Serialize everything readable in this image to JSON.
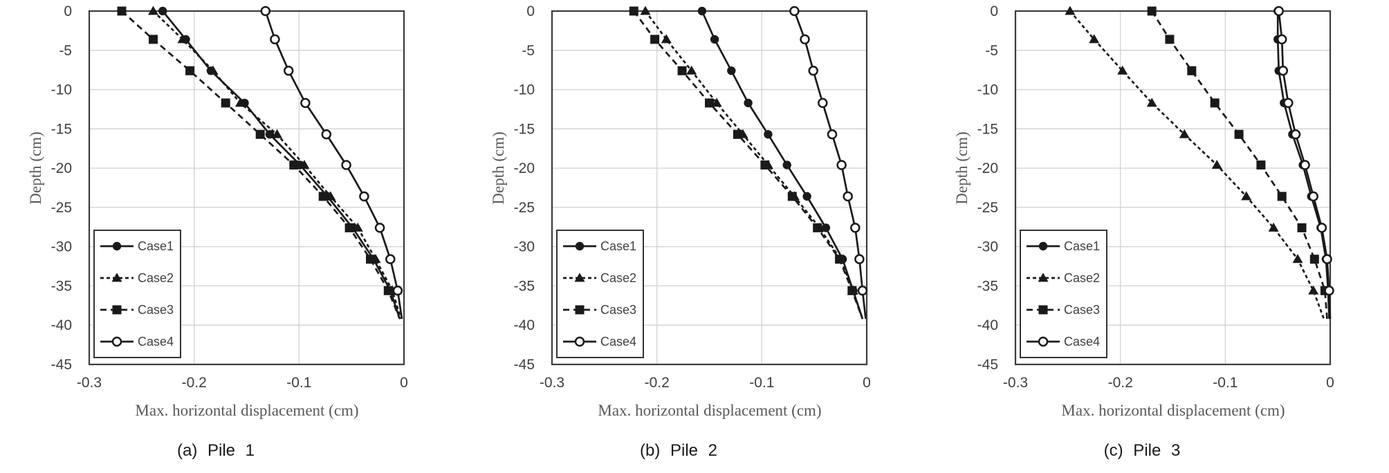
{
  "figure": {
    "background": "#ffffff"
  },
  "colors": {
    "series": "#1a1a1a",
    "grid": "#d2d2d2",
    "border": "#3c3c3c",
    "tick_text": "#3f3f3f",
    "axis_title_text": "#595959",
    "caption_text": "#1a1a1a",
    "legend_bg": "#ffffff"
  },
  "legend": {
    "position": "bottom-left",
    "entries": [
      "Case1",
      "Case2",
      "Case3",
      "Case4"
    ]
  },
  "chart_data": [
    {
      "type": "line",
      "caption": "(a) Pile 1",
      "xlabel": "Max. horizontal displacement (cm)",
      "ylabel": "Depth (cm)",
      "xlim": [
        -0.3,
        0
      ],
      "ylim": [
        -45,
        0
      ],
      "grid": true,
      "legend_position": "bottom-left",
      "x_tick_labels": [
        "-0.3",
        "-0.2",
        "-0.1",
        "0"
      ],
      "x_tick_values": [
        -0.3,
        -0.2,
        -0.1,
        0
      ],
      "y_tick_labels": [
        "0",
        "-5",
        "-10",
        "-15",
        "-20",
        "-25",
        "-30",
        "-35",
        "-40",
        "-45"
      ],
      "y_tick_values": [
        0,
        -5,
        -10,
        -15,
        -20,
        -25,
        -30,
        -35,
        -40,
        -45
      ],
      "depths": [
        0,
        -3.6,
        -7.6,
        -11.7,
        -15.7,
        -19.6,
        -23.6,
        -27.6,
        -31.6,
        -35.6,
        -39.2
      ],
      "series": [
        {
          "name": "Case1",
          "marker": "circle-filled",
          "line": "solid",
          "values": [
            -0.23,
            -0.208,
            -0.184,
            -0.152,
            -0.128,
            -0.099,
            -0.073,
            -0.049,
            -0.029,
            -0.013,
            -0.004
          ]
        },
        {
          "name": "Case2",
          "marker": "triangle-filled",
          "line": "dash-short",
          "values": [
            -0.239,
            -0.211,
            -0.182,
            -0.156,
            -0.121,
            -0.095,
            -0.07,
            -0.044,
            -0.027,
            -0.011,
            -0.003
          ]
        },
        {
          "name": "Case3",
          "marker": "square-filled",
          "line": "dash-long",
          "values": [
            -0.269,
            -0.239,
            -0.204,
            -0.17,
            -0.137,
            -0.105,
            -0.077,
            -0.052,
            -0.032,
            -0.015,
            -0.004
          ]
        },
        {
          "name": "Case4",
          "marker": "circle-open",
          "line": "solid",
          "values": [
            -0.132,
            -0.123,
            -0.11,
            -0.094,
            -0.074,
            -0.055,
            -0.038,
            -0.023,
            -0.013,
            -0.006,
            -0.002
          ]
        }
      ]
    },
    {
      "type": "line",
      "caption": "(b) Pile 2",
      "xlabel": "Max. horizontal displacement (cm)",
      "ylabel": "Depth (cm)",
      "xlim": [
        -0.3,
        0
      ],
      "ylim": [
        -45,
        0
      ],
      "grid": true,
      "legend_position": "bottom-left",
      "x_tick_labels": [
        "-0.3",
        "-0.2",
        "-0.1",
        "0"
      ],
      "x_tick_values": [
        -0.3,
        -0.2,
        -0.1,
        0
      ],
      "y_tick_labels": [
        "0",
        "-5",
        "-10",
        "-15",
        "-20",
        "-25",
        "-30",
        "-35",
        "-40",
        "-45"
      ],
      "y_tick_values": [
        0,
        -5,
        -10,
        -15,
        -20,
        -25,
        -30,
        -35,
        -40,
        -45
      ],
      "depths": [
        0,
        -3.6,
        -7.6,
        -11.7,
        -15.7,
        -19.6,
        -23.6,
        -27.6,
        -31.6,
        -35.6,
        -39.2
      ],
      "series": [
        {
          "name": "Case1",
          "marker": "circle-filled",
          "line": "solid",
          "values": [
            -0.157,
            -0.145,
            -0.129,
            -0.113,
            -0.094,
            -0.076,
            -0.057,
            -0.039,
            -0.023,
            -0.013,
            -0.004
          ]
        },
        {
          "name": "Case2",
          "marker": "triangle-filled",
          "line": "dash-short",
          "values": [
            -0.211,
            -0.191,
            -0.167,
            -0.143,
            -0.118,
            -0.094,
            -0.069,
            -0.045,
            -0.025,
            -0.013,
            -0.004
          ]
        },
        {
          "name": "Case3",
          "marker": "square-filled",
          "line": "dash-long",
          "values": [
            -0.222,
            -0.202,
            -0.176,
            -0.15,
            -0.123,
            -0.097,
            -0.071,
            -0.047,
            -0.026,
            -0.014,
            -0.004
          ]
        },
        {
          "name": "Case4",
          "marker": "circle-open",
          "line": "solid",
          "values": [
            -0.069,
            -0.059,
            -0.051,
            -0.042,
            -0.033,
            -0.024,
            -0.018,
            -0.011,
            -0.007,
            -0.004,
            -0.001
          ]
        }
      ]
    },
    {
      "type": "line",
      "caption": "(c) Pile 3",
      "xlabel": "Max. horizontal displacement (cm)",
      "ylabel": "Depth (cm)",
      "xlim": [
        -0.3,
        0
      ],
      "ylim": [
        -45,
        0
      ],
      "grid": true,
      "legend_position": "bottom-left",
      "x_tick_labels": [
        "-0.3",
        "-0.2",
        "-0.1",
        "0"
      ],
      "x_tick_values": [
        -0.3,
        -0.2,
        -0.1,
        0
      ],
      "y_tick_labels": [
        "0",
        "-5",
        "-10",
        "-15",
        "-20",
        "-25",
        "-30",
        "-35",
        "-40",
        "-45"
      ],
      "y_tick_values": [
        0,
        -5,
        -10,
        -15,
        -20,
        -25,
        -30,
        -35,
        -40,
        -45
      ],
      "depths": [
        0,
        -3.6,
        -7.6,
        -11.7,
        -15.7,
        -19.6,
        -23.6,
        -27.6,
        -31.6,
        -35.6,
        -39.2
      ],
      "series": [
        {
          "name": "Case1",
          "marker": "circle-filled",
          "line": "solid",
          "values": [
            -0.05,
            -0.05,
            -0.049,
            -0.044,
            -0.036,
            -0.026,
            -0.018,
            -0.009,
            -0.004,
            -0.002,
            -0.001
          ]
        },
        {
          "name": "Case2",
          "marker": "triangle-filled",
          "line": "dash-short",
          "values": [
            -0.248,
            -0.225,
            -0.198,
            -0.17,
            -0.139,
            -0.108,
            -0.08,
            -0.054,
            -0.031,
            -0.016,
            -0.006
          ]
        },
        {
          "name": "Case3",
          "marker": "square-filled",
          "line": "dash-long",
          "values": [
            -0.17,
            -0.153,
            -0.132,
            -0.11,
            -0.087,
            -0.066,
            -0.046,
            -0.027,
            -0.015,
            -0.005,
            -0.003
          ]
        },
        {
          "name": "Case4",
          "marker": "circle-open",
          "line": "solid",
          "values": [
            -0.049,
            -0.046,
            -0.045,
            -0.04,
            -0.033,
            -0.024,
            -0.016,
            -0.008,
            -0.003,
            -0.001,
            0.0
          ]
        }
      ]
    }
  ]
}
